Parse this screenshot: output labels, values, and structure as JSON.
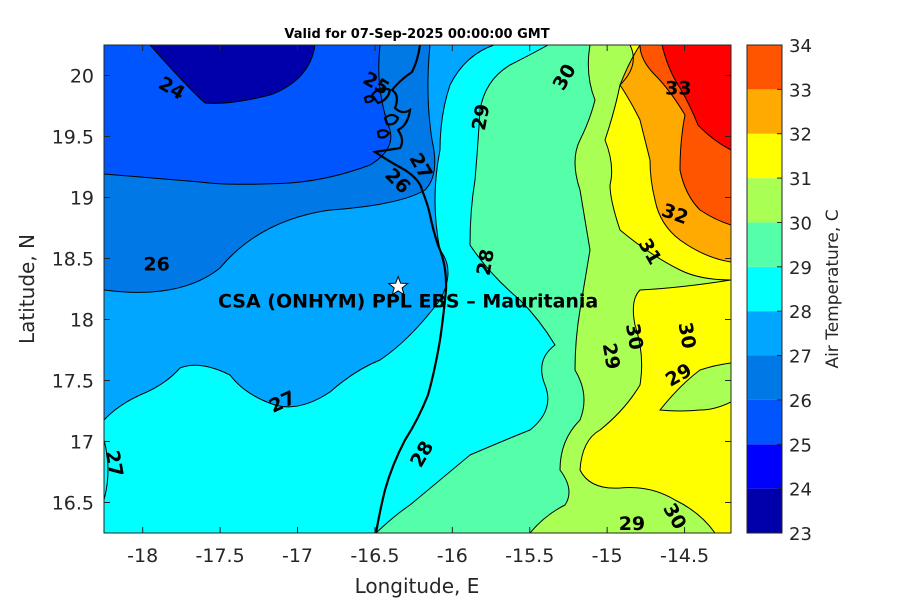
{
  "chart_data": {
    "type": "contour",
    "title": "Valid for 07-Sep-2025 00:00:00 GMT",
    "xlabel": "Longitude, E",
    "ylabel": "Latitude, N",
    "xlim": [
      -18.25,
      -14.2
    ],
    "ylim": [
      16.25,
      20.25
    ],
    "xticks": [
      -18,
      -17.5,
      -17,
      -16.5,
      -16,
      -15.5,
      -15,
      -14.5
    ],
    "yticks": [
      16.5,
      17,
      17.5,
      18,
      18.5,
      19,
      19.5,
      20
    ],
    "xtick_labels": [
      "-18",
      "-17.5",
      "-17",
      "-16.5",
      "-16",
      "-15.5",
      "-15",
      "-14.5"
    ],
    "ytick_labels": [
      "16.5",
      "17",
      "17.5",
      "18",
      "18.5",
      "19",
      "19.5",
      "20"
    ],
    "colorbar": {
      "label": "Air Temperature, C",
      "levels": [
        23,
        24,
        25,
        26,
        27,
        28,
        29,
        30,
        31,
        32,
        33,
        34
      ],
      "tick_labels": [
        "23",
        "24",
        "25",
        "26",
        "27",
        "28",
        "29",
        "30",
        "31",
        "32",
        "33",
        "34"
      ],
      "colors": [
        "#0000aa",
        "#0000ff",
        "#0055ff",
        "#0078e6",
        "#00a6ff",
        "#00ffff",
        "#55ffaa",
        "#aaff55",
        "#ffff00",
        "#ffaa00",
        "#ff5500",
        "#ff0000",
        "#aa0000"
      ]
    },
    "contour_labels": [
      {
        "text": "24",
        "lon": -17.81,
        "lat": 19.9
      },
      {
        "text": "25",
        "lon": -16.49,
        "lat": 19.94
      },
      {
        "text": "26",
        "lon": -16.35,
        "lat": 19.14
      },
      {
        "text": "26",
        "lon": -17.91,
        "lat": 18.46
      },
      {
        "text": "27",
        "lon": -16.2,
        "lat": 19.26
      },
      {
        "text": "27",
        "lon": -17.1,
        "lat": 17.33
      },
      {
        "text": "27",
        "lon": -18.18,
        "lat": 16.82
      },
      {
        "text": "28",
        "lon": -15.79,
        "lat": 18.47
      },
      {
        "text": "28",
        "lon": -16.2,
        "lat": 16.9
      },
      {
        "text": "29",
        "lon": -15.82,
        "lat": 19.66
      },
      {
        "text": "29",
        "lon": -14.97,
        "lat": 17.7
      },
      {
        "text": "29",
        "lon": -14.54,
        "lat": 17.55
      },
      {
        "text": "29",
        "lon": -14.84,
        "lat": 16.33
      },
      {
        "text": "30",
        "lon": -15.28,
        "lat": 19.99
      },
      {
        "text": "30",
        "lon": -14.82,
        "lat": 17.86
      },
      {
        "text": "30",
        "lon": -14.48,
        "lat": 17.87
      },
      {
        "text": "30",
        "lon": -14.56,
        "lat": 16.39
      },
      {
        "text": "31",
        "lon": -14.72,
        "lat": 18.56
      },
      {
        "text": "32",
        "lon": -14.56,
        "lat": 18.87
      },
      {
        "text": "33",
        "lon": -14.54,
        "lat": 19.9
      }
    ],
    "site": {
      "label": "CSA (ONHYM) PPL EBS  – Mauritania",
      "lon": -16.35,
      "lat": 18.27
    }
  }
}
